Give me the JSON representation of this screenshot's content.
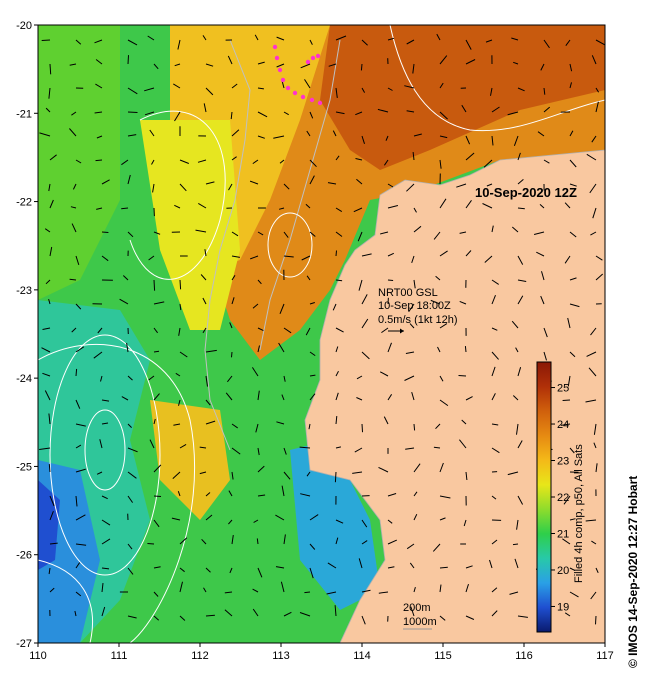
{
  "map": {
    "date_label": "10-Sep-2020 12Z",
    "lon_range": [
      110,
      117
    ],
    "lat_range": [
      -27,
      -20
    ],
    "x_ticks": [
      "110",
      "111",
      "112",
      "113",
      "114",
      "115",
      "116",
      "117"
    ],
    "y_ticks": [
      "-20",
      "-21",
      "-22",
      "-23",
      "-24",
      "-25",
      "-26",
      "-27"
    ],
    "land_color": "#f9c8a0",
    "contour_color": "#ffffff",
    "coast_color": "#b0b0b0",
    "drifter_color": "#ff33cc"
  },
  "current_legend": {
    "line1": "NRT00 GSL",
    "line2": "10-Sep 18:00Z",
    "line3": "0.5m/s (1kt 12h)"
  },
  "depth_legend": {
    "line1": "200m",
    "line2": "1000m"
  },
  "colorbar": {
    "label": "Filled 4h comp, p50, All Sats",
    "ticks": [
      "19",
      "20",
      "21",
      "22",
      "23",
      "24",
      "25"
    ],
    "range": [
      18.3,
      25.7
    ],
    "colors": [
      "#0a1a6e",
      "#1f4fd0",
      "#2aa0e6",
      "#28c9a8",
      "#2ecf4a",
      "#8fdc2c",
      "#e8e619",
      "#f4b918",
      "#e68a12",
      "#d0600c",
      "#b03008",
      "#8a1806"
    ]
  },
  "credit": "© IMOS 14-Sep-2020 12:27 Hobart"
}
